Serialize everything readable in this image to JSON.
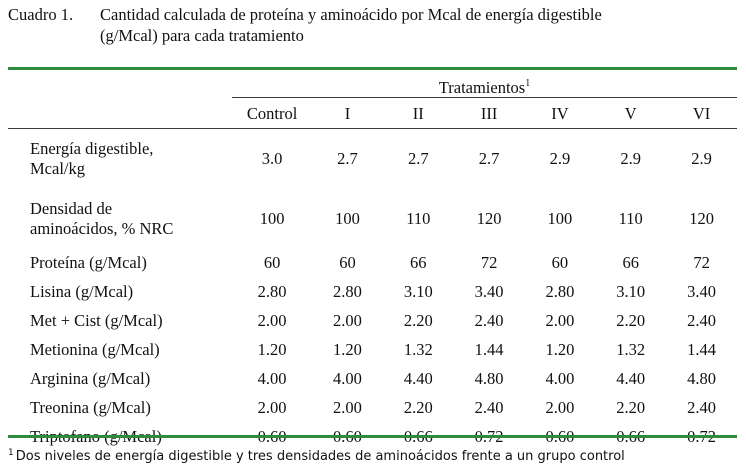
{
  "caption": {
    "number": "Cuadro 1.",
    "line1": "Cantidad calculada de proteína y aminoácido por Mcal de energía digestible",
    "line2": "(g/Mcal) para cada tratamiento"
  },
  "table": {
    "group_header": "Tratamientos",
    "group_header_mark": "1",
    "columns": [
      "Control",
      "I",
      "II",
      "III",
      "IV",
      "V",
      "VI"
    ],
    "rows": [
      {
        "label_l1": "Energía digestible,",
        "label_l2": "Mcal/kg",
        "values": [
          "3.0",
          "2.7",
          "2.7",
          "2.7",
          "2.9",
          "2.9",
          "2.9"
        ]
      },
      {
        "label_l1": "Densidad de",
        "label_l2": "aminoácidos, % NRC",
        "values": [
          "100",
          "100",
          "110",
          "120",
          "100",
          "110",
          "120"
        ]
      },
      {
        "label": "Proteína (g/Mcal)",
        "values": [
          "60",
          "60",
          "66",
          "72",
          "60",
          "66",
          "72"
        ]
      },
      {
        "label": "Lisina (g/Mcal)",
        "values": [
          "2.80",
          "2.80",
          "3.10",
          "3.40",
          "2.80",
          "3.10",
          "3.40"
        ]
      },
      {
        "label": "Met + Cist (g/Mcal)",
        "values": [
          "2.00",
          "2.00",
          "2.20",
          "2.40",
          "2.00",
          "2.20",
          "2.40"
        ]
      },
      {
        "label": "Metionina (g/Mcal)",
        "values": [
          "1.20",
          "1.20",
          "1.32",
          "1.44",
          "1.20",
          "1.32",
          "1.44"
        ]
      },
      {
        "label": "Arginina (g/Mcal)",
        "values": [
          "4.00",
          "4.00",
          "4.40",
          "4.80",
          "4.00",
          "4.40",
          "4.80"
        ]
      },
      {
        "label": "Treonina (g/Mcal)",
        "values": [
          "2.00",
          "2.00",
          "2.20",
          "2.40",
          "2.00",
          "2.20",
          "2.40"
        ]
      },
      {
        "label": "Triptofano (g/Mcal)",
        "values": [
          "0.60",
          "0.60",
          "0.66",
          "0.72",
          "0.60",
          "0.66",
          "0.72"
        ]
      }
    ]
  },
  "footnote": {
    "mark": "1",
    "text": "Dos niveles de energía digestible y tres densidades de aminoácidos frente a un grupo control"
  },
  "colors": {
    "rule_accent": "#2e8b3d"
  }
}
